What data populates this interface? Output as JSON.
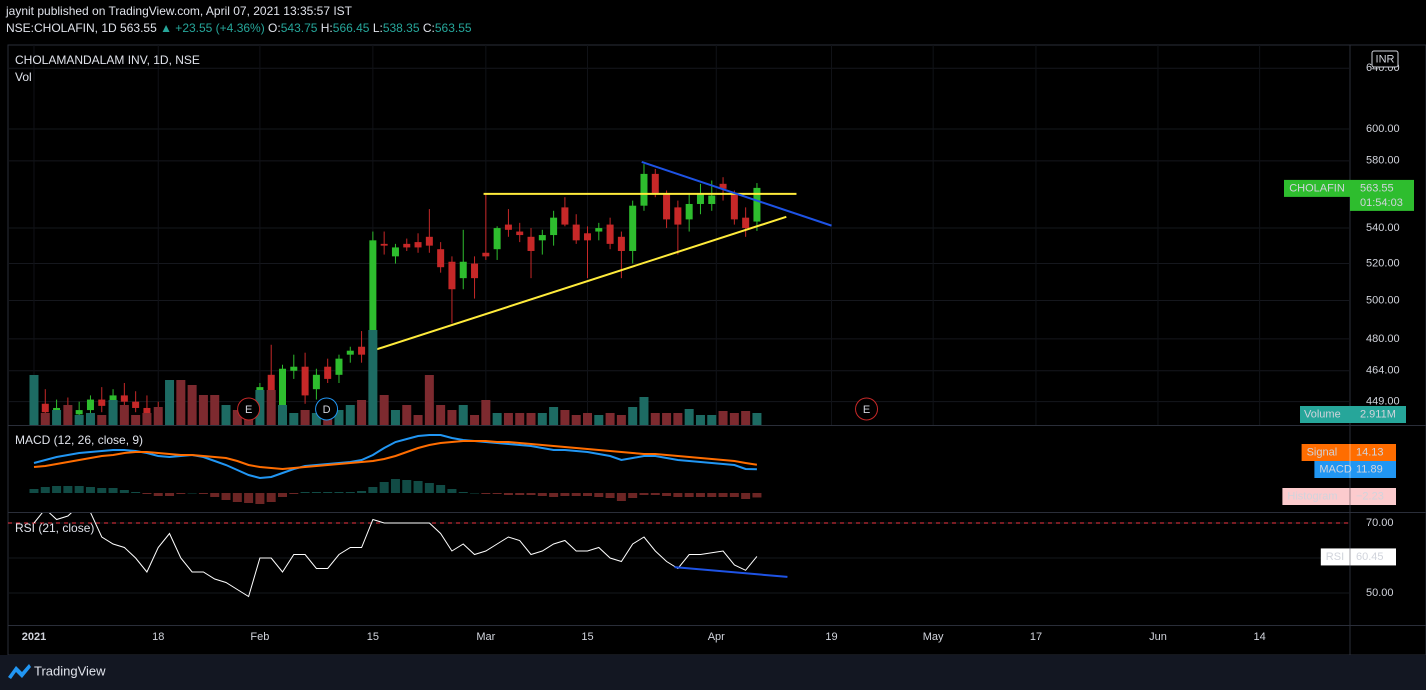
{
  "header": {
    "author_line": "jaynit published on TradingView.com, April 07, 2021 13:35:57 IST",
    "symbol": "NSE:CHOLAFIN, 1D",
    "change": "▲ +23.55 (+4.36%)",
    "ohlc_labels": [
      "O:",
      "H:",
      "L:",
      "C:"
    ]
  },
  "footer": {
    "brand": "TradingView"
  },
  "chart_data": [
    {
      "type": "candlestick",
      "title": "CHOLAMANDALAM INV, 1D, NSE",
      "name": "CHOLAFIN",
      "currency": "INR",
      "countdown": "01:54:03",
      "open": [
        445,
        448,
        444,
        446,
        443,
        445,
        450,
        447,
        452,
        449,
        446,
        443,
        440,
        445,
        442,
        438,
        436,
        433,
        437,
        434,
        438,
        462,
        447,
        464,
        466,
        455,
        466,
        462,
        472,
        476,
        475,
        531,
        524,
        531,
        532,
        535,
        528,
        521,
        512,
        520,
        526,
        528,
        542,
        538,
        535,
        533,
        536,
        552,
        542,
        537,
        538,
        542,
        535,
        527,
        553,
        572,
        560,
        552,
        545,
        554,
        554,
        566,
        560,
        546,
        543.75
      ],
      "high": [
        452,
        455,
        450,
        451,
        449,
        452,
        456,
        455,
        458,
        454,
        452,
        449,
        447,
        452,
        448,
        444,
        441,
        440,
        443,
        440,
        458,
        477,
        467,
        472,
        473,
        465,
        470,
        472,
        476,
        484,
        538,
        538,
        531,
        534,
        537,
        551,
        532,
        524,
        539,
        524,
        560,
        541,
        551,
        543,
        540,
        539,
        550,
        558,
        548,
        541,
        543,
        546,
        538,
        556,
        578,
        575,
        562,
        556,
        560,
        566,
        568,
        570,
        562,
        552,
        566.45
      ],
      "low": [
        440,
        442,
        438,
        441,
        437,
        441,
        444,
        443,
        447,
        444,
        440,
        436,
        434,
        440,
        436,
        432,
        430,
        428,
        430,
        428,
        435,
        450,
        445,
        460,
        448,
        450,
        458,
        458,
        468,
        468,
        470,
        525,
        520,
        527,
        526,
        526,
        515,
        488,
        506,
        501,
        522,
        522,
        535,
        532,
        512,
        525,
        530,
        541,
        531,
        512,
        533,
        528,
        512,
        520,
        550,
        558,
        540,
        525,
        538,
        548,
        550,
        556,
        542,
        535,
        538.35
      ],
      "close": [
        448,
        444,
        446,
        443,
        445,
        450,
        447,
        452,
        449,
        446,
        443,
        440,
        445,
        442,
        438,
        436,
        433,
        437,
        434,
        432,
        456,
        452,
        465,
        466,
        452,
        462,
        460,
        470,
        474,
        472,
        533,
        530,
        529,
        529,
        529,
        530,
        518,
        506,
        521,
        512,
        524,
        540,
        539,
        536,
        527,
        536,
        546,
        542,
        533,
        533,
        540,
        531,
        527,
        553,
        572,
        560,
        545,
        542,
        554,
        560,
        559,
        563,
        545,
        540,
        563.55
      ],
      "up_color": "#2ebd2e",
      "down_color": "#c62828",
      "log": true,
      "grid": true,
      "ylim": [
        438,
        656
      ],
      "yticks": [
        {
          "value": 449,
          "label": "449.00"
        },
        {
          "value": 464,
          "label": "464.00"
        },
        {
          "value": 480,
          "label": "480.00"
        },
        {
          "value": 500,
          "label": "500.00"
        },
        {
          "value": 520,
          "label": "520.00"
        },
        {
          "value": 540,
          "label": "540.00"
        },
        {
          "value": 580,
          "label": "580.00"
        },
        {
          "value": 600,
          "label": "600.00"
        },
        {
          "value": 640,
          "label": "640.00"
        }
      ],
      "xlim": [
        -2.3,
        116.5
      ],
      "xticks": [
        {
          "value": 0,
          "label": "2021"
        },
        {
          "value": 11,
          "label": "18"
        },
        {
          "value": 20,
          "label": "Feb"
        },
        {
          "value": 30,
          "label": "15"
        },
        {
          "value": 40,
          "label": "Mar"
        },
        {
          "value": 49,
          "label": "15"
        },
        {
          "value": 60.4,
          "label": "Apr"
        },
        {
          "value": 70.6,
          "label": "19"
        },
        {
          "value": 79.6,
          "label": "May"
        },
        {
          "value": 88.7,
          "label": "17"
        },
        {
          "value": 99.5,
          "label": "Jun"
        },
        {
          "value": 108.5,
          "label": "14"
        }
      ],
      "events": [
        {
          "label": "E",
          "x": 19,
          "color": "#c62828"
        },
        {
          "label": "D",
          "x": 25.9,
          "color": "#2196f3"
        },
        {
          "label": "E",
          "x": 73.7,
          "color": "#c62828"
        }
      ],
      "trendlines": [
        {
          "color": "#ffeb3b",
          "start": [
            39.8,
            560
          ],
          "end": [
            67.5,
            560
          ]
        },
        {
          "color": "#ffeb3b",
          "start": [
            29.8,
            473.7
          ],
          "end": [
            66.6,
            546.5
          ]
        },
        {
          "color": "#1e53e5",
          "start": [
            53.8,
            579.3
          ],
          "end": [
            70.6,
            541.4
          ]
        }
      ]
    },
    {
      "type": "bar",
      "title": "Vol",
      "name": "Volume",
      "color": "#26a69a",
      "up_color": "#1d6b63",
      "down_color": "#7d2a2f",
      "values": [
        12130000,
        2911000,
        3639000,
        4852000,
        2426000,
        2911000,
        2426000,
        6065000,
        4852000,
        2426000,
        2911000,
        4367000,
        10917000,
        10917000,
        9704000,
        7278000,
        7278000,
        4852000,
        3639000,
        2911000,
        8491000,
        8491000,
        4852000,
        2911000,
        3639000,
        2911000,
        2911000,
        3639000,
        4852000,
        6065000,
        23047000,
        7278000,
        3639000,
        4852000,
        2426000,
        12130000,
        4852000,
        3639000,
        4852000,
        2426000,
        6065000,
        2911000,
        2911000,
        2911000,
        2911000,
        2911000,
        4367000,
        3639000,
        2426000,
        2911000,
        2426000,
        2911000,
        2426000,
        4367000,
        6793000,
        2911000,
        2911000,
        2911000,
        3882000,
        2426000,
        2426000,
        3396000,
        2911000,
        3396000,
        2911000
      ],
      "value_labels": [
        null,
        null,
        null,
        null,
        null,
        null,
        null,
        null,
        null,
        null,
        null,
        null,
        null,
        null,
        null,
        null,
        null,
        null,
        null,
        null,
        null,
        null,
        null,
        null,
        null,
        null,
        null,
        null,
        null,
        null,
        null,
        null,
        null,
        null,
        null,
        null,
        null,
        null,
        null,
        null,
        null,
        null,
        null,
        null,
        null,
        null,
        null,
        null,
        null,
        null,
        null,
        null,
        null,
        null,
        null,
        null,
        null,
        null,
        null,
        null,
        null,
        null,
        null,
        null,
        "2.911M"
      ]
    },
    {
      "type": "line",
      "title": "MACD (12, 26, close, 9)",
      "ylim": [
        -9.5,
        32.5
      ],
      "series": [
        {
          "name": "Histogram",
          "style": "histogram",
          "color": "#26a69a",
          "negative_color": "#ef5350",
          "label_color": "#fccbcd",
          "values": [
            2,
            3,
            3.5,
            3.5,
            3.5,
            3,
            2.5,
            2.5,
            1.5,
            0.5,
            -0.5,
            -1.5,
            -1.5,
            -0.5,
            0,
            -0.5,
            -2,
            -3.5,
            -4.5,
            -5,
            -5.5,
            -4.5,
            -2,
            -0.5,
            0.5,
            0.5,
            0.5,
            0.5,
            0.5,
            1,
            3,
            5.5,
            7,
            6.5,
            6,
            5,
            4,
            2,
            0.5,
            0,
            -0.5,
            -0.5,
            -1,
            -1,
            -1,
            -1.5,
            -2,
            -1.5,
            -1.5,
            -1.5,
            -2,
            -2.5,
            -4,
            -2.5,
            -1,
            -1,
            -1.5,
            -2,
            -2,
            -2,
            -2,
            -2,
            -2,
            -3,
            -2.23
          ],
          "value_labels": [
            null,
            null,
            null,
            null,
            null,
            null,
            null,
            null,
            null,
            null,
            null,
            null,
            null,
            null,
            null,
            null,
            null,
            null,
            null,
            null,
            null,
            null,
            null,
            null,
            null,
            null,
            null,
            null,
            null,
            null,
            null,
            null,
            null,
            null,
            null,
            null,
            null,
            null,
            null,
            null,
            null,
            null,
            null,
            null,
            null,
            null,
            null,
            null,
            null,
            null,
            null,
            null,
            null,
            null,
            null,
            null,
            null,
            null,
            null,
            null,
            null,
            null,
            null,
            null,
            "−2.23"
          ]
        },
        {
          "name": "MACD",
          "color": "#2196f3",
          "values": [
            15,
            16.5,
            18,
            19,
            20,
            20.5,
            21,
            21.5,
            21.5,
            21,
            20,
            18.5,
            18,
            18.5,
            19,
            18,
            16,
            14,
            11.5,
            9,
            7.5,
            8,
            10,
            12,
            13.5,
            14,
            14.5,
            15,
            15.5,
            16.5,
            19,
            22.5,
            25.5,
            27,
            28.5,
            29,
            29,
            27.5,
            26.5,
            26,
            25.5,
            25,
            24.5,
            24,
            23.5,
            22.5,
            21.5,
            21.5,
            21,
            20.5,
            19.5,
            18.5,
            16.5,
            17.5,
            18.5,
            18.5,
            17.5,
            16.5,
            16,
            15.5,
            15,
            14.5,
            14,
            12,
            11.89
          ]
        },
        {
          "name": "Signal",
          "color": "#ff6d00",
          "values": [
            13,
            13.5,
            14.5,
            15.5,
            16.5,
            17.5,
            18.5,
            19,
            20,
            20.5,
            20.5,
            20,
            19.5,
            19,
            19,
            18.5,
            18,
            17.5,
            16,
            14,
            13,
            12.5,
            12,
            12.5,
            13,
            13.5,
            14,
            14.5,
            15,
            15.5,
            16,
            17,
            18.5,
            20.5,
            22.5,
            24,
            25,
            25.5,
            26,
            26,
            26,
            25.5,
            25.5,
            25,
            24.5,
            24,
            23.5,
            23,
            22.5,
            22,
            21.5,
            21,
            20.5,
            20,
            19.5,
            19.5,
            19,
            18.5,
            18,
            17.5,
            17,
            16.5,
            16,
            15,
            14.13
          ]
        }
      ]
    },
    {
      "type": "line",
      "title": "RSI (21, close)",
      "ylim": [
        40.86,
        72.29
      ],
      "yticks": [
        {
          "value": 50,
          "label": "50.00"
        },
        {
          "value": 60,
          "label": "60.00"
        },
        {
          "value": 70,
          "label": "70.00"
        }
      ],
      "upper_band": 70,
      "band_color": "#f23645",
      "series": [
        {
          "name": "RSI",
          "color": "#ffffff",
          "label_color": "#ffffff",
          "values": [
            70,
            74,
            71,
            72,
            75,
            73,
            66,
            64,
            63,
            60,
            56,
            63,
            67,
            60,
            56,
            56,
            54,
            53,
            51,
            49,
            60,
            60,
            56,
            61,
            61,
            57,
            57,
            61,
            63,
            63,
            71,
            70,
            70,
            70,
            70,
            70,
            67,
            62,
            64,
            61,
            62,
            64,
            66,
            65,
            61,
            62,
            64,
            65,
            62,
            62,
            63,
            60,
            59,
            64,
            66,
            62,
            59,
            57,
            61,
            61,
            61.5,
            62,
            58,
            56.5,
            60.45
          ]
        }
      ],
      "trendlines": [
        {
          "color": "#1e53e5",
          "start": [
            56.7,
            57.4
          ],
          "end": [
            66.7,
            54.6
          ]
        }
      ]
    }
  ]
}
